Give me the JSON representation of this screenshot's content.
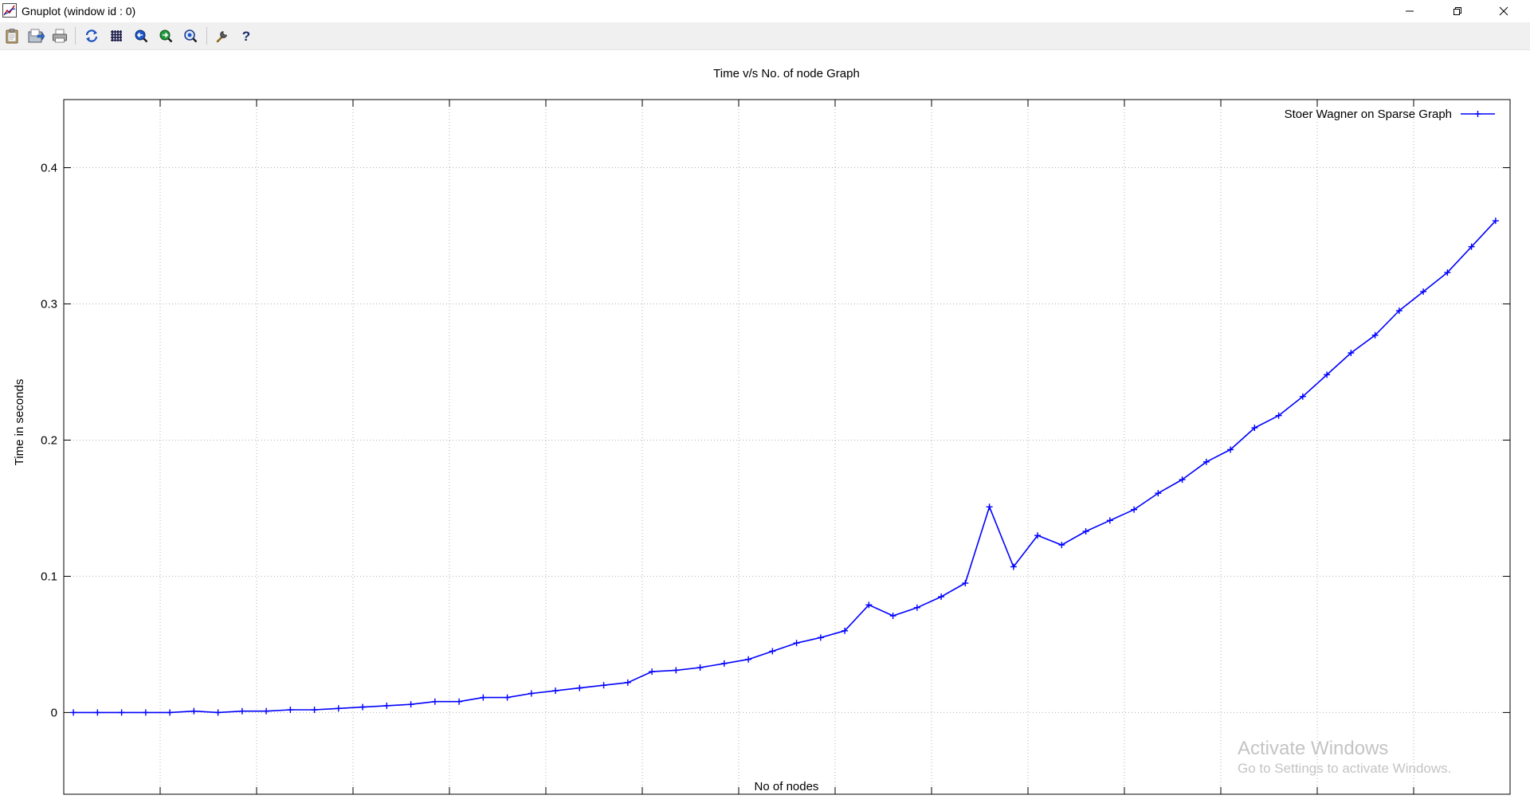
{
  "window": {
    "title": "Gnuplot (window id : 0)",
    "controls": [
      "minimize",
      "restore",
      "close"
    ]
  },
  "toolbar": {
    "buttons": [
      {
        "icon": "clipboard-icon"
      },
      {
        "icon": "export-icon"
      },
      {
        "icon": "print-icon"
      },
      {
        "icon": "replot-icon"
      },
      {
        "icon": "grid-icon"
      },
      {
        "icon": "zoom-previous-icon"
      },
      {
        "icon": "zoom-next-icon"
      },
      {
        "icon": "zoom-unzoom-icon"
      },
      {
        "icon": "settings-wrench-icon"
      },
      {
        "icon": "help-icon"
      }
    ]
  },
  "watermark": {
    "line1": "Activate Windows",
    "line2": "Go to Settings to activate Windows."
  },
  "chart_data": {
    "type": "line",
    "title": "Time v/s No. of node Graph",
    "xlabel": "No of nodes",
    "ylabel": "Time in seconds",
    "xlim": [
      0,
      300
    ],
    "ylim": [
      -0.06,
      0.45
    ],
    "xticks": [
      0,
      20,
      40,
      60,
      80,
      100,
      120,
      140,
      160,
      180,
      200,
      220,
      240,
      260,
      280,
      300
    ],
    "yticks": [
      0,
      0.1,
      0.2,
      0.3,
      0.4
    ],
    "ytick_labels": [
      "0",
      "0.1",
      "0.2",
      "0.3",
      "0.4"
    ],
    "grid": true,
    "legend_position": "top-right",
    "series": [
      {
        "name": "Stoer Wagner on Sparse Graph",
        "color": "#0000ff",
        "marker": "plus",
        "x": [
          2,
          7,
          12,
          17,
          22,
          27,
          32,
          37,
          42,
          47,
          52,
          57,
          62,
          67,
          72,
          77,
          82,
          87,
          92,
          97,
          102,
          107,
          112,
          117,
          122,
          127,
          132,
          137,
          142,
          147,
          152,
          157,
          162,
          167,
          172,
          177,
          182,
          187,
          192,
          197,
          202,
          207,
          212,
          217,
          222,
          227,
          232,
          237,
          242,
          247,
          252,
          257,
          262,
          267,
          272,
          277,
          282,
          287,
          292,
          297
        ],
        "y": [
          0,
          0,
          0,
          0,
          0,
          0.001,
          0,
          0.001,
          0.001,
          0.002,
          0.002,
          0.003,
          0.004,
          0.005,
          0.006,
          0.008,
          0.008,
          0.011,
          0.011,
          0.014,
          0.016,
          0.018,
          0.02,
          0.022,
          0.03,
          0.031,
          0.033,
          0.036,
          0.039,
          0.045,
          0.051,
          0.055,
          0.06,
          0.079,
          0.071,
          0.077,
          0.085,
          0.095,
          0.151,
          0.107,
          0.13,
          0.123,
          0.133,
          0.141,
          0.149,
          0.161,
          0.171,
          0.184,
          0.193,
          0.209,
          0.218,
          0.232,
          0.248,
          0.264,
          0.277,
          0.295,
          0.309,
          0.323,
          0.342,
          0.361
        ]
      }
    ]
  }
}
